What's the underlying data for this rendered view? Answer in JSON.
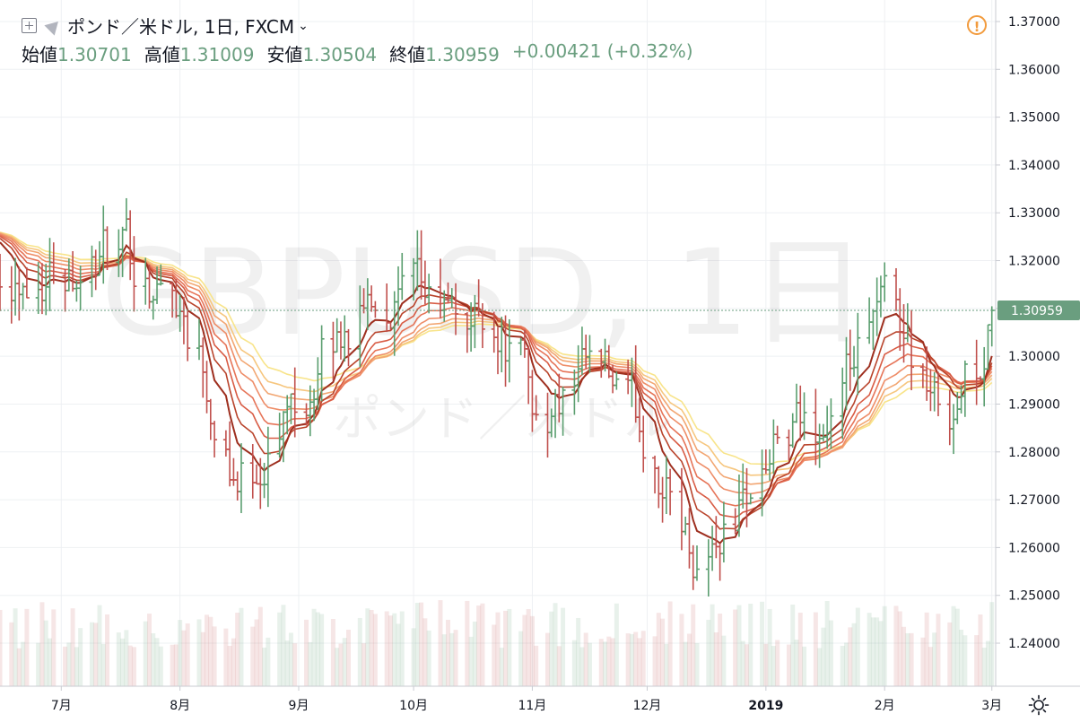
{
  "header": {
    "symbol": "ポンド／米ドル, 1日, FXCM",
    "open_label": "始値",
    "open_value": "1.30701",
    "high_label": "高値",
    "high_value": "1.31009",
    "low_label": "安値",
    "low_value": "1.30504",
    "close_label": "終値",
    "close_value": "1.30959",
    "change": "+0.00421 (+0.32%)"
  },
  "icons": {
    "add": "plus-icon",
    "flag": "flag-icon",
    "alert": "warning-icon",
    "settings": "gear-icon"
  },
  "watermark": {
    "main": "GBPUSD, 1日",
    "sub": "ポンド／米ドル"
  },
  "colors": {
    "up": "#5a9e6f",
    "down": "#c0504d",
    "price_tag": "#6a9e7f"
  },
  "chart_data": {
    "type": "candlestick",
    "x_labels": [
      "7月",
      "8月",
      "9月",
      "10月",
      "11月",
      "12月",
      "2019",
      "2月",
      "3月"
    ],
    "x_label_dates": [
      "2018-07-01",
      "2018-08-01",
      "2018-09-01",
      "2018-10-01",
      "2018-11-01",
      "2018-12-01",
      "2019-01-01",
      "2019-02-01",
      "2019-03-01"
    ],
    "y_ticks": [
      "1.37000",
      "1.36000",
      "1.35000",
      "1.34000",
      "1.33000",
      "1.32000",
      "1.31000",
      "1.30000",
      "1.29000",
      "1.28000",
      "1.27000",
      "1.26000",
      "1.25000",
      "1.24000"
    ],
    "ylim": [
      1.231,
      1.3745
    ],
    "xlim": [
      "2018-06-15",
      "2019-03-02"
    ],
    "last_price": 1.30959,
    "last_price_label": "1.30959",
    "trend": {
      "dates": [
        "2018-06-15",
        "2018-07-10",
        "2018-07-31",
        "2018-08-15",
        "2018-08-31",
        "2018-09-20",
        "2018-10-12",
        "2018-10-20",
        "2018-11-01",
        "2018-11-15",
        "2018-12-01",
        "2018-12-12",
        "2019-01-01",
        "2019-01-15",
        "2019-02-01",
        "2019-02-15",
        "2019-02-28"
      ],
      "close": [
        1.32,
        1.322,
        1.312,
        1.272,
        1.295,
        1.315,
        1.305,
        1.312,
        1.285,
        1.295,
        1.28,
        1.256,
        1.28,
        1.285,
        1.312,
        1.285,
        1.3096
      ]
    },
    "ema_ribbon": {
      "count": 8,
      "colors": [
        "#9e2f1f",
        "#b9442c",
        "#d85c45",
        "#e67458",
        "#ee8d68",
        "#f2a672",
        "#f6c67e",
        "#f8e48a"
      ]
    },
    "volume_axis_max": 1.0
  }
}
